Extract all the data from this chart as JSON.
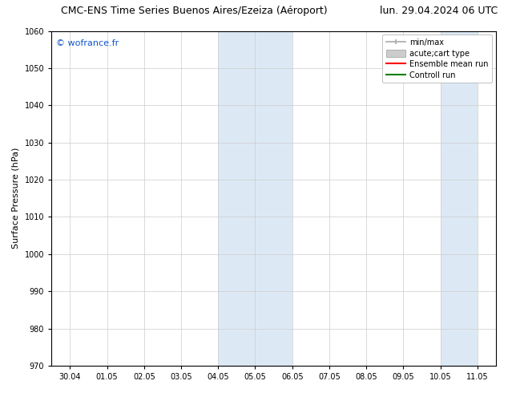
{
  "title_left": "CMC-ENS Time Series Buenos Aires/Ezeiza (Aéroport)",
  "title_right": "lun. 29.04.2024 06 UTC",
  "ylabel": "Surface Pressure (hPa)",
  "watermark": "© wofrance.fr",
  "ylim": [
    970,
    1060
  ],
  "yticks": [
    970,
    980,
    990,
    1000,
    1010,
    1020,
    1030,
    1040,
    1050,
    1060
  ],
  "x_tick_labels": [
    "30.04",
    "01.05",
    "02.05",
    "03.05",
    "04.05",
    "05.05",
    "06.05",
    "07.05",
    "08.05",
    "09.05",
    "10.05",
    "11.05"
  ],
  "x_tick_positions": [
    0,
    1,
    2,
    3,
    4,
    5,
    6,
    7,
    8,
    9,
    10,
    11
  ],
  "shaded_regions": [
    {
      "xmin": 4,
      "xmax": 6,
      "color": "#dce9f5"
    },
    {
      "xmin": 10,
      "xmax": 11,
      "color": "#dce9f5"
    }
  ],
  "legend_items": [
    {
      "label": "min/max",
      "color": "#aaaaaa"
    },
    {
      "label": "acute;cart type",
      "color": "#cccccc"
    },
    {
      "label": "Ensemble mean run",
      "color": "red"
    },
    {
      "label": "Controll run",
      "color": "green"
    }
  ],
  "background_color": "#ffffff",
  "plot_bg_color": "#ffffff",
  "grid_color": "#cccccc",
  "title_fontsize": 9,
  "tick_fontsize": 7,
  "ylabel_fontsize": 8,
  "watermark_color": "#1155cc",
  "watermark_fontsize": 8,
  "xlim_min": -0.5,
  "xlim_max": 11.5
}
